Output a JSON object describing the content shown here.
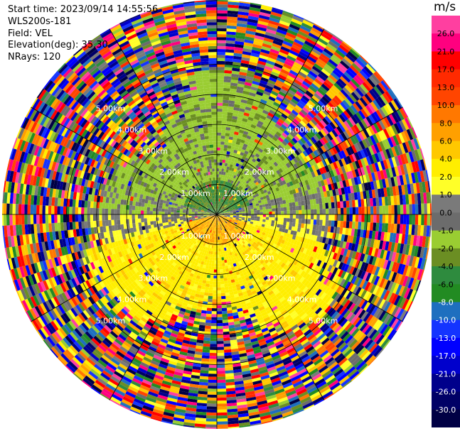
{
  "header": {
    "start_time": "Start time: 2023/09/14 14:55:56",
    "instrument": "WLS200s-181",
    "field": "Field: VEL",
    "elevation": "Elevation(deg): 35.30",
    "nrays": "NRays: 120"
  },
  "chart_data": {
    "type": "heatmap",
    "projection": "polar-ppi",
    "field": "VEL",
    "nrays": 120,
    "range_ring_labels": [
      "1.00km",
      "2.00km",
      "3.00km",
      "4.00km",
      "5.00km"
    ],
    "range_rings_km": [
      1,
      2,
      3,
      4,
      5
    ],
    "max_range_km": 7,
    "colorbar": {
      "unit": "m/s",
      "ticks": [
        "26.0",
        "21.0",
        "17.0",
        "13.0",
        "10.0",
        "8.0",
        "6.0",
        "4.0",
        "2.0",
        "1.0",
        "0.0",
        "-1.0",
        "-2.0",
        "-4.0",
        "-6.0",
        "-8.0",
        "-10.0",
        "-13.0",
        "-17.0",
        "-21.0",
        "-26.0",
        "-30.0"
      ],
      "colors": [
        "#ff3fa0",
        "#ff007f",
        "#ff0000",
        "#ff2a00",
        "#ff4500",
        "#ff7800",
        "#ffa000",
        "#ffc800",
        "#ffee00",
        "#ffff28",
        "#7a7a7a",
        "#6c6c6c",
        "#9acd32",
        "#6b8e23",
        "#2e8b3e",
        "#228b22",
        "#1e6fbf",
        "#1434ff",
        "#0000ff",
        "#0000cc",
        "#00008b",
        "#000066",
        "#000044"
      ]
    },
    "near_range_pattern": {
      "north": "-4.0 to -1.0 (green)",
      "east-west": "0.0 (gray)",
      "south": "1.0 to 4.0 (yellow/orange)"
    },
    "far_range": "noisy, all colors"
  }
}
